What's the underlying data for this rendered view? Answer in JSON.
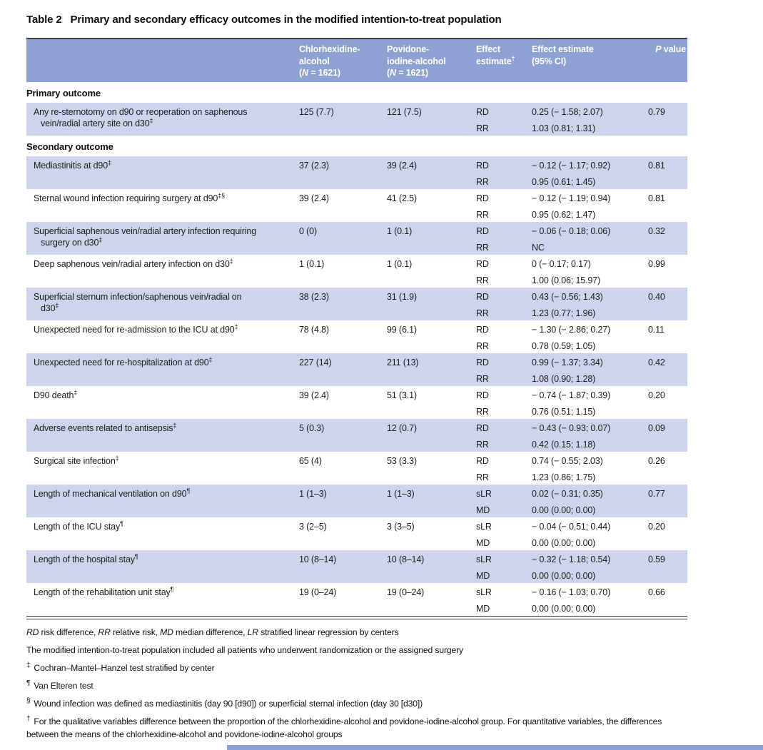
{
  "colors": {
    "header_bg": "#8da2d2",
    "row_shade": "#cdd5ec",
    "header_text": "#ffffff",
    "text": "#1b1b1b"
  },
  "title": {
    "tag": "Table 2",
    "text": "Primary and secondary efficacy outcomes in the modified intention-to-treat population"
  },
  "table": {
    "headers": {
      "outcome": "",
      "chx": "Chlorhexidine-\nalcohol\n(*N* = 1621)",
      "pvi": "Povidone-\niodine-alcohol\n(*N* = 1621)",
      "effect": "Effect\nestimate^†^",
      "effect_ci": "Effect estimate\n(95% CI)",
      "p": "*P* value"
    },
    "sections": [
      {
        "header": "Primary outcome",
        "rows": [
          {
            "shaded": true,
            "label": "Any re-sternotomy on d90 or reoperation on saphenous\nvein/radial artery site on d30^‡^",
            "chx": "125 (7.7)",
            "pvi": "121 (7.5)",
            "effects": [
              [
                "RD",
                "0.25 (− 1.58; 2.07)"
              ],
              [
                "RR",
                "1.03 (0.81; 1.31)"
              ]
            ],
            "p": "0.79"
          }
        ]
      },
      {
        "header": "Secondary outcome",
        "rows": [
          {
            "shaded": true,
            "label": "Mediastinitis at d90^‡^",
            "chx": "37 (2.3)",
            "pvi": "39 (2.4)",
            "effects": [
              [
                "RD",
                "− 0.12 (− 1.17; 0.92)"
              ],
              [
                "RR",
                "0.95 (0.61; 1.45)"
              ]
            ],
            "p": "0.81"
          },
          {
            "shaded": false,
            "label": "Sternal wound infection requiring surgery at d90^‡§^",
            "chx": "39 (2.4)",
            "pvi": "41 (2.5)",
            "effects": [
              [
                "RD",
                "− 0.12 (− 1.19; 0.94)"
              ],
              [
                "RR",
                "0.95 (0.62; 1.47)"
              ]
            ],
            "p": "0.81"
          },
          {
            "shaded": true,
            "label": "Superficial saphenous vein/radial artery infection requiring\nsurgery on d30^‡^",
            "chx": "0 (0)",
            "pvi": "1 (0.1)",
            "effects": [
              [
                "RD",
                "− 0.06 (− 0.18; 0.06)"
              ],
              [
                "RR",
                "NC"
              ]
            ],
            "p": "0.32"
          },
          {
            "shaded": false,
            "label": "Deep saphenous vein/radial artery infection on d30^‡^",
            "chx": "1 (0.1)",
            "pvi": "1 (0.1)",
            "effects": [
              [
                "RD",
                "0 (− 0.17; 0.17)"
              ],
              [
                "RR",
                "1.00 (0.06; 15.97)"
              ]
            ],
            "p": "0.99"
          },
          {
            "shaded": true,
            "label": "Superficial sternum infection/saphenous vein/radial on\nd30^‡^",
            "chx": "38 (2.3)",
            "pvi": "31 (1.9)",
            "effects": [
              [
                "RD",
                "0.43 (− 0.56; 1.43)"
              ],
              [
                "RR",
                "1.23 (0.77; 1.96)"
              ]
            ],
            "p": "0.40"
          },
          {
            "shaded": false,
            "label": "Unexpected need for re-admission to the ICU at d90^‡^",
            "chx": "78 (4.8)",
            "pvi": "99 (6.1)",
            "effects": [
              [
                "RD",
                "− 1.30 (− 2.86; 0.27)"
              ],
              [
                "RR",
                "0.78 (0.59; 1.05)"
              ]
            ],
            "p": "0.11"
          },
          {
            "shaded": true,
            "label": "Unexpected need for re-hospitalization at d90^‡^",
            "chx": "227 (14)",
            "pvi": "211 (13)",
            "effects": [
              [
                "RD",
                "0.99 (− 1.37; 3.34)"
              ],
              [
                "RR",
                "1.08 (0.90; 1.28)"
              ]
            ],
            "p": "0.42"
          },
          {
            "shaded": false,
            "label": "D90 death^‡^",
            "chx": "39 (2.4)",
            "pvi": "51 (3.1)",
            "effects": [
              [
                "RD",
                "− 0.74 (− 1.87; 0.39)"
              ],
              [
                "RR",
                "0.76 (0.51; 1.15)"
              ]
            ],
            "p": "0.20"
          },
          {
            "shaded": true,
            "label": "Adverse events related to antisepsis^‡^",
            "chx": "5 (0.3)",
            "pvi": "12 (0.7)",
            "effects": [
              [
                "RD",
                "− 0.43 (− 0.93; 0.07)"
              ],
              [
                "RR",
                "0.42 (0.15; 1.18)"
              ]
            ],
            "p": "0.09"
          },
          {
            "shaded": false,
            "label": "Surgical site infection^‡^",
            "chx": "65 (4)",
            "pvi": "53 (3.3)",
            "effects": [
              [
                "RD",
                "0.74 (− 0.55; 2.03)"
              ],
              [
                "RR",
                "1.23 (0.86; 1.75)"
              ]
            ],
            "p": "0.26"
          },
          {
            "shaded": true,
            "label": "Length of mechanical ventilation on d90^¶^",
            "chx": "1 (1–3)",
            "pvi": "1 (1–3)",
            "effects": [
              [
                "sLR",
                "0.02 (− 0.31; 0.35)"
              ],
              [
                "MD",
                "0.00 (0.00; 0.00)"
              ]
            ],
            "p": "0.77"
          },
          {
            "shaded": false,
            "label": "Length of the ICU stay^¶^",
            "chx": "3 (2–5)",
            "pvi": "3 (3–5)",
            "effects": [
              [
                "sLR",
                "− 0.04 (− 0.51; 0.44)"
              ],
              [
                "MD",
                "0.00 (0.00; 0.00)"
              ]
            ],
            "p": "0.20"
          },
          {
            "shaded": true,
            "label": "Length of the hospital stay^¶^",
            "chx": "10 (8–14)",
            "pvi": "10 (8–14)",
            "effects": [
              [
                "sLR",
                "− 0.32 (− 1.18; 0.54)"
              ],
              [
                "MD",
                "0.00 (0.00; 0.00)"
              ]
            ],
            "p": "0.59"
          },
          {
            "shaded": false,
            "label": "Length of the rehabilitation unit stay^¶^",
            "chx": "19 (0–24)",
            "pvi": "19 (0–24)",
            "effects": [
              [
                "sLR",
                "− 0.16 (− 1.03; 0.70)"
              ],
              [
                "MD",
                "0.00 (0.00; 0.00)"
              ]
            ],
            "p": "0.66"
          }
        ]
      }
    ]
  },
  "footnotes": [
    {
      "marker": "",
      "text": "*RD* risk difference, *RR* relative risk, *MD* median difference, *LR* stratified linear regression by centers"
    },
    {
      "marker": "",
      "text": "The modified intention-to-treat population included all patients who underwent randomization or the assigned surgery"
    },
    {
      "marker": "‡",
      "text": "Cochran–Mantel–Hanzel test stratified by center"
    },
    {
      "marker": "¶",
      "text": "Van Elteren test"
    },
    {
      "marker": "§",
      "text": "Wound infection was defined as mediastinitis (day 90 [d90]) or superficial sternal infection (day 30 [d30])"
    },
    {
      "marker": "†",
      "text": "For the qualitative variables difference between the proportion of the chlorhexidine-alcohol and povidone-iodine-alcohol group. For quantitative variables, the differences between the means of the chlorhexidine-alcohol and povidone-iodine-alcohol groups"
    }
  ]
}
